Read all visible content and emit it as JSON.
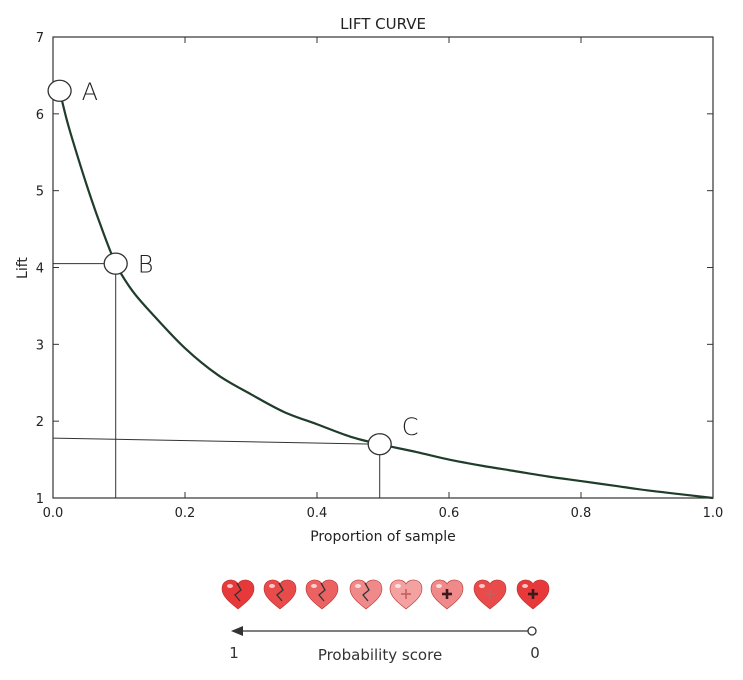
{
  "chart_data": {
    "type": "line",
    "title": "LIFT CURVE",
    "xlabel": "Proportion of sample",
    "ylabel": "Lift",
    "xlim": [
      0.0,
      1.0
    ],
    "ylim": [
      1,
      7
    ],
    "x_ticks": [
      "0.0",
      "0.2",
      "0.4",
      "0.6",
      "0.8",
      "1.0"
    ],
    "y_ticks": [
      "1",
      "2",
      "3",
      "4",
      "5",
      "6",
      "7"
    ],
    "grid": false,
    "series": [
      {
        "x": [
          0.01,
          0.02,
          0.03,
          0.05,
          0.07,
          0.095,
          0.12,
          0.15,
          0.2,
          0.25,
          0.3,
          0.35,
          0.4,
          0.45,
          0.495,
          0.55,
          0.6,
          0.65,
          0.7,
          0.75,
          0.8,
          0.85,
          0.9,
          0.95,
          1.0
        ],
        "y": [
          6.3,
          5.95,
          5.65,
          5.1,
          4.6,
          4.05,
          3.7,
          3.4,
          2.95,
          2.6,
          2.35,
          2.12,
          1.96,
          1.8,
          1.7,
          1.6,
          1.5,
          1.42,
          1.35,
          1.28,
          1.22,
          1.16,
          1.1,
          1.05,
          1.0
        ],
        "color": "#1f3d2a"
      }
    ],
    "points": [
      {
        "label": "A",
        "x": 0.01,
        "y": 6.3
      },
      {
        "label": "B",
        "x": 0.095,
        "y": 4.05
      },
      {
        "label": "C",
        "x": 0.495,
        "y": 1.7
      }
    ],
    "reference_lines": [
      {
        "point": "B",
        "h_to_y": 4.05,
        "v_to_x": 0.095
      },
      {
        "point": "C",
        "h_from_y": 1.78,
        "h_to_y": 1.7,
        "v_to_x": 0.495
      }
    ]
  },
  "footer": {
    "hearts": [
      {
        "color": "#e8393a",
        "mark": "crack"
      },
      {
        "color": "#e94a4a",
        "mark": "crack"
      },
      {
        "color": "#ec6262",
        "mark": "crack"
      },
      {
        "color": "#f08a8a",
        "mark": "crack"
      },
      {
        "color": "#f3a1a1",
        "mark": "plus-faint"
      },
      {
        "color": "#f08a8a",
        "mark": "plus"
      },
      {
        "color": "#e94a4a",
        "mark": "plus-faint"
      },
      {
        "color": "#e8393a",
        "mark": "plus"
      }
    ],
    "arrow_left_label": "1",
    "arrow_right_label": "0",
    "arrow_caption": "Probability score"
  }
}
